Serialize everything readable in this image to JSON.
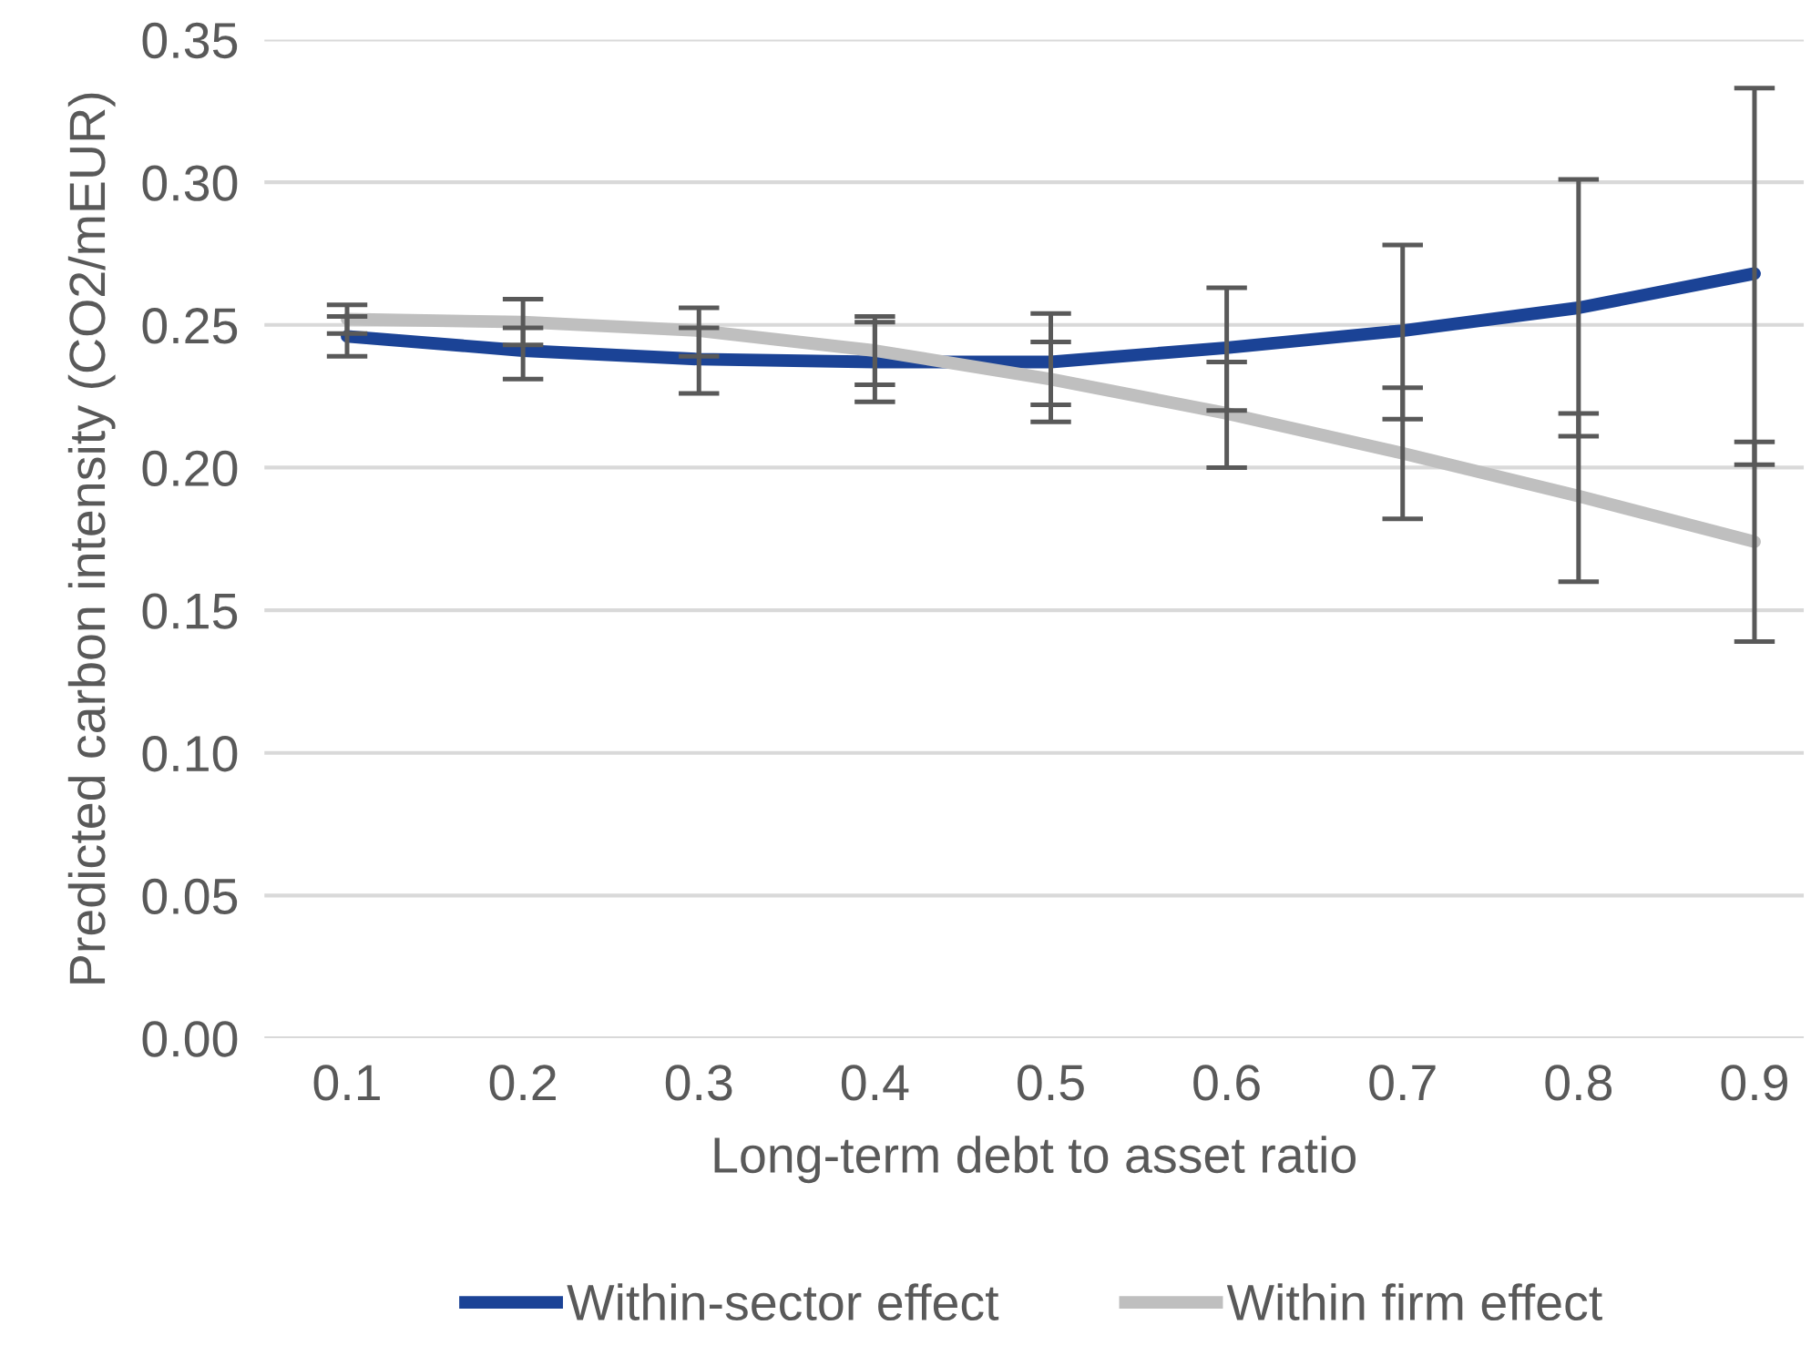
{
  "chart_data": {
    "type": "line",
    "xlabel": "Long-term debt to asset ratio",
    "ylabel": "Predicted carbon intensity (CO2/mEUR)",
    "categories": [
      "0.1",
      "0.2",
      "0.3",
      "0.4",
      "0.5",
      "0.6",
      "0.7",
      "0.8",
      "0.9"
    ],
    "series": [
      {
        "name": "Within-sector effect",
        "color": "#1b4396",
        "values": [
          0.246,
          0.241,
          0.238,
          0.237,
          0.237,
          0.242,
          0.248,
          0.256,
          0.268
        ],
        "errors": [
          [
            0.239,
            0.253
          ],
          [
            0.231,
            0.249
          ],
          [
            0.226,
            0.249
          ],
          [
            0.223,
            0.251
          ],
          [
            0.222,
            0.254
          ],
          [
            0.22,
            0.263
          ],
          [
            0.217,
            0.278
          ],
          [
            0.211,
            0.301
          ],
          [
            0.201,
            0.333
          ]
        ]
      },
      {
        "name": "Within firm effect",
        "color": "#bfbfbf",
        "values": [
          0.252,
          0.251,
          0.248,
          0.241,
          0.231,
          0.219,
          0.205,
          0.19,
          0.174
        ],
        "errors": [
          [
            0.247,
            0.257
          ],
          [
            0.243,
            0.259
          ],
          [
            0.239,
            0.256
          ],
          [
            0.229,
            0.253
          ],
          [
            0.216,
            0.244
          ],
          [
            0.2,
            0.237
          ],
          [
            0.182,
            0.228
          ],
          [
            0.16,
            0.219
          ],
          [
            0.139,
            0.209
          ]
        ]
      }
    ],
    "ylim": [
      0,
      0.35
    ],
    "yticks": [
      {
        "value": 0,
        "label": "0.00"
      },
      {
        "value": 0.05,
        "label": "0.05"
      },
      {
        "value": 0.1,
        "label": "0.10"
      },
      {
        "value": 0.15,
        "label": "0.15"
      },
      {
        "value": 0.2,
        "label": "0.20"
      },
      {
        "value": 0.25,
        "label": "0.25"
      },
      {
        "value": 0.3,
        "label": "0.30"
      },
      {
        "value": 0.35,
        "label": "0.35"
      }
    ],
    "grid": "y",
    "legend": "bottom",
    "marker": "none",
    "line_style": "solid"
  }
}
